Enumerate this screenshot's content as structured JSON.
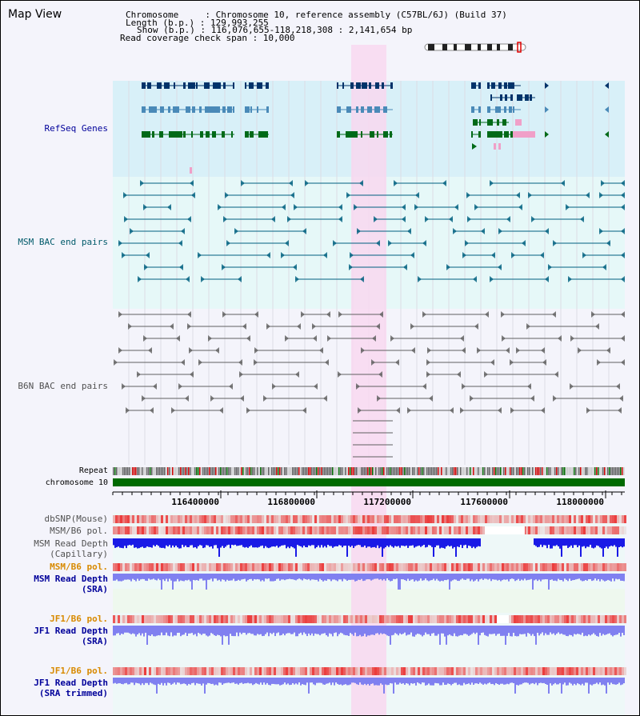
{
  "header": {
    "title": "Map View",
    "info_lines": [
      "Chromosome     : Chromosome 10, reference assembly (C57BL/6J) (Build 37)",
      "Length (b.p.) : 129,993,255",
      "Show (b.p.) : 116,076,655-118,218,308 : 2,141,654 bp",
      "Read coverage check span : 10,000"
    ]
  },
  "tracks": {
    "refseq": "RefSeq Genes",
    "msm_bac": "MSM BAC end pairs",
    "b6n_bac": "B6N BAC end pairs",
    "repeat": "Repeat",
    "chromosome": "chromosome 10",
    "dbsnp": "dbSNP(Mouse)",
    "msm_pol": "MSM/B6 pol.",
    "msm_depth_cap_1": "MSM Read Depth",
    "msm_depth_cap_2": "(Capillary)",
    "msm_pol2": "MSM/B6 pol.",
    "msm_depth_sra_1": "MSM Read Depth",
    "msm_depth_sra_2": "(SRA)",
    "jf1_pol": "JF1/B6 pol.",
    "jf1_depth_sra_1": "JF1 Read Depth",
    "jf1_depth_sra_2": "(SRA)",
    "jf1_pol2": "JF1/B6 pol.",
    "jf1_depth_trim_1": "JF1 Read Depth",
    "jf1_depth_trim_2": "(SRA trimmed)"
  },
  "axis": {
    "ticks": [
      "116400000",
      "116800000",
      "117200000",
      "117600000",
      "118000000"
    ]
  },
  "colors": {
    "refseq_bg": "#d8f0f8",
    "msm_bg": "#e6f8f8",
    "highlight": "#f8d8f0",
    "gene_dark": "#00336a",
    "gene_mid": "#4a8ab8",
    "gene_green": "#006a18",
    "gene_pink": "#f0a0c8",
    "msm_line": "#006080",
    "b6n_line": "#606060",
    "chrom_green": "#006a00",
    "depth_blue": "#1a1ae6",
    "depth_lavender": "#8080f0",
    "label_blue": "#00009a",
    "label_teal": "#005a6a",
    "label_grey": "#505050",
    "label_orange": "#d88a00"
  }
}
